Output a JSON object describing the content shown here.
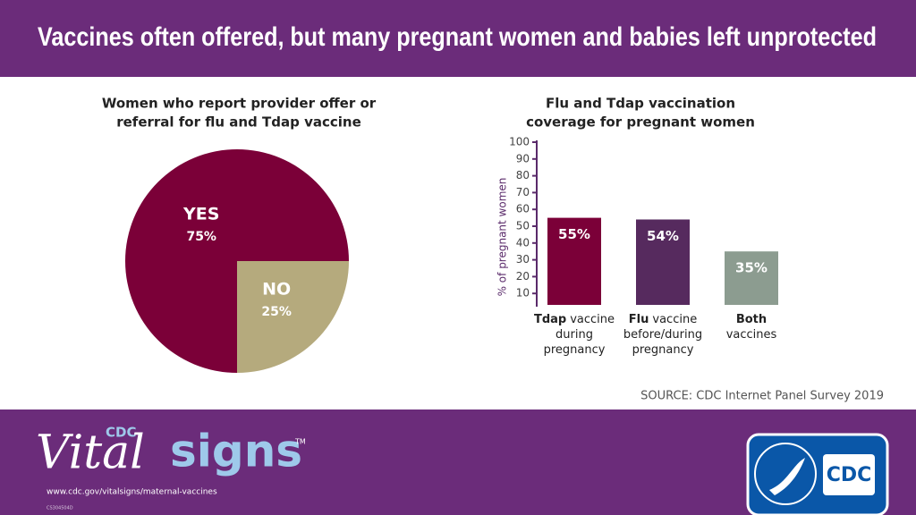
{
  "header": {
    "title": "Vaccines often offered, but many pregnant women and babies left unprotected"
  },
  "chart_data": [
    {
      "type": "pie",
      "title": [
        "Women who report provider offer or",
        "referral for flu and Tdap vaccine"
      ],
      "categories": [
        "YES",
        "NO"
      ],
      "values": [
        75,
        25
      ],
      "value_labels": [
        "75%",
        "25%"
      ],
      "colors": [
        "#7b0038",
        "#b5aa7d"
      ]
    },
    {
      "type": "bar",
      "title": [
        "Flu and Tdap vaccination",
        "coverage for pregnant women"
      ],
      "y_label": "% of pregnant women",
      "categories": [
        [
          [
            "Tdap",
            "vaccine"
          ],
          [
            "during"
          ],
          [
            "pregnancy"
          ]
        ],
        [
          [
            "Flu",
            "vaccine"
          ],
          [
            "before/during"
          ],
          [
            "pregnancy"
          ]
        ],
        [
          [
            "Both"
          ],
          [
            "vaccines"
          ]
        ]
      ],
      "values": [
        55,
        54,
        35
      ],
      "value_labels": [
        "55%",
        "54%",
        "35%"
      ],
      "colors": [
        "#7b0038",
        "#562a5e",
        "#8c9c90"
      ],
      "ylim": [
        0,
        100
      ],
      "yticks": [
        10,
        20,
        30,
        40,
        50,
        60,
        70,
        80,
        90,
        100
      ]
    }
  ],
  "source": "SOURCE: CDC Internet Panel Survey 2019",
  "footer": {
    "cdc": "CDC",
    "vital": "Vital",
    "signs": "signs",
    "tm": "TM",
    "url": "www.cdc.gov/vitalsigns/maternal-vaccines",
    "code": "CS304504D",
    "logo": "CDC"
  }
}
